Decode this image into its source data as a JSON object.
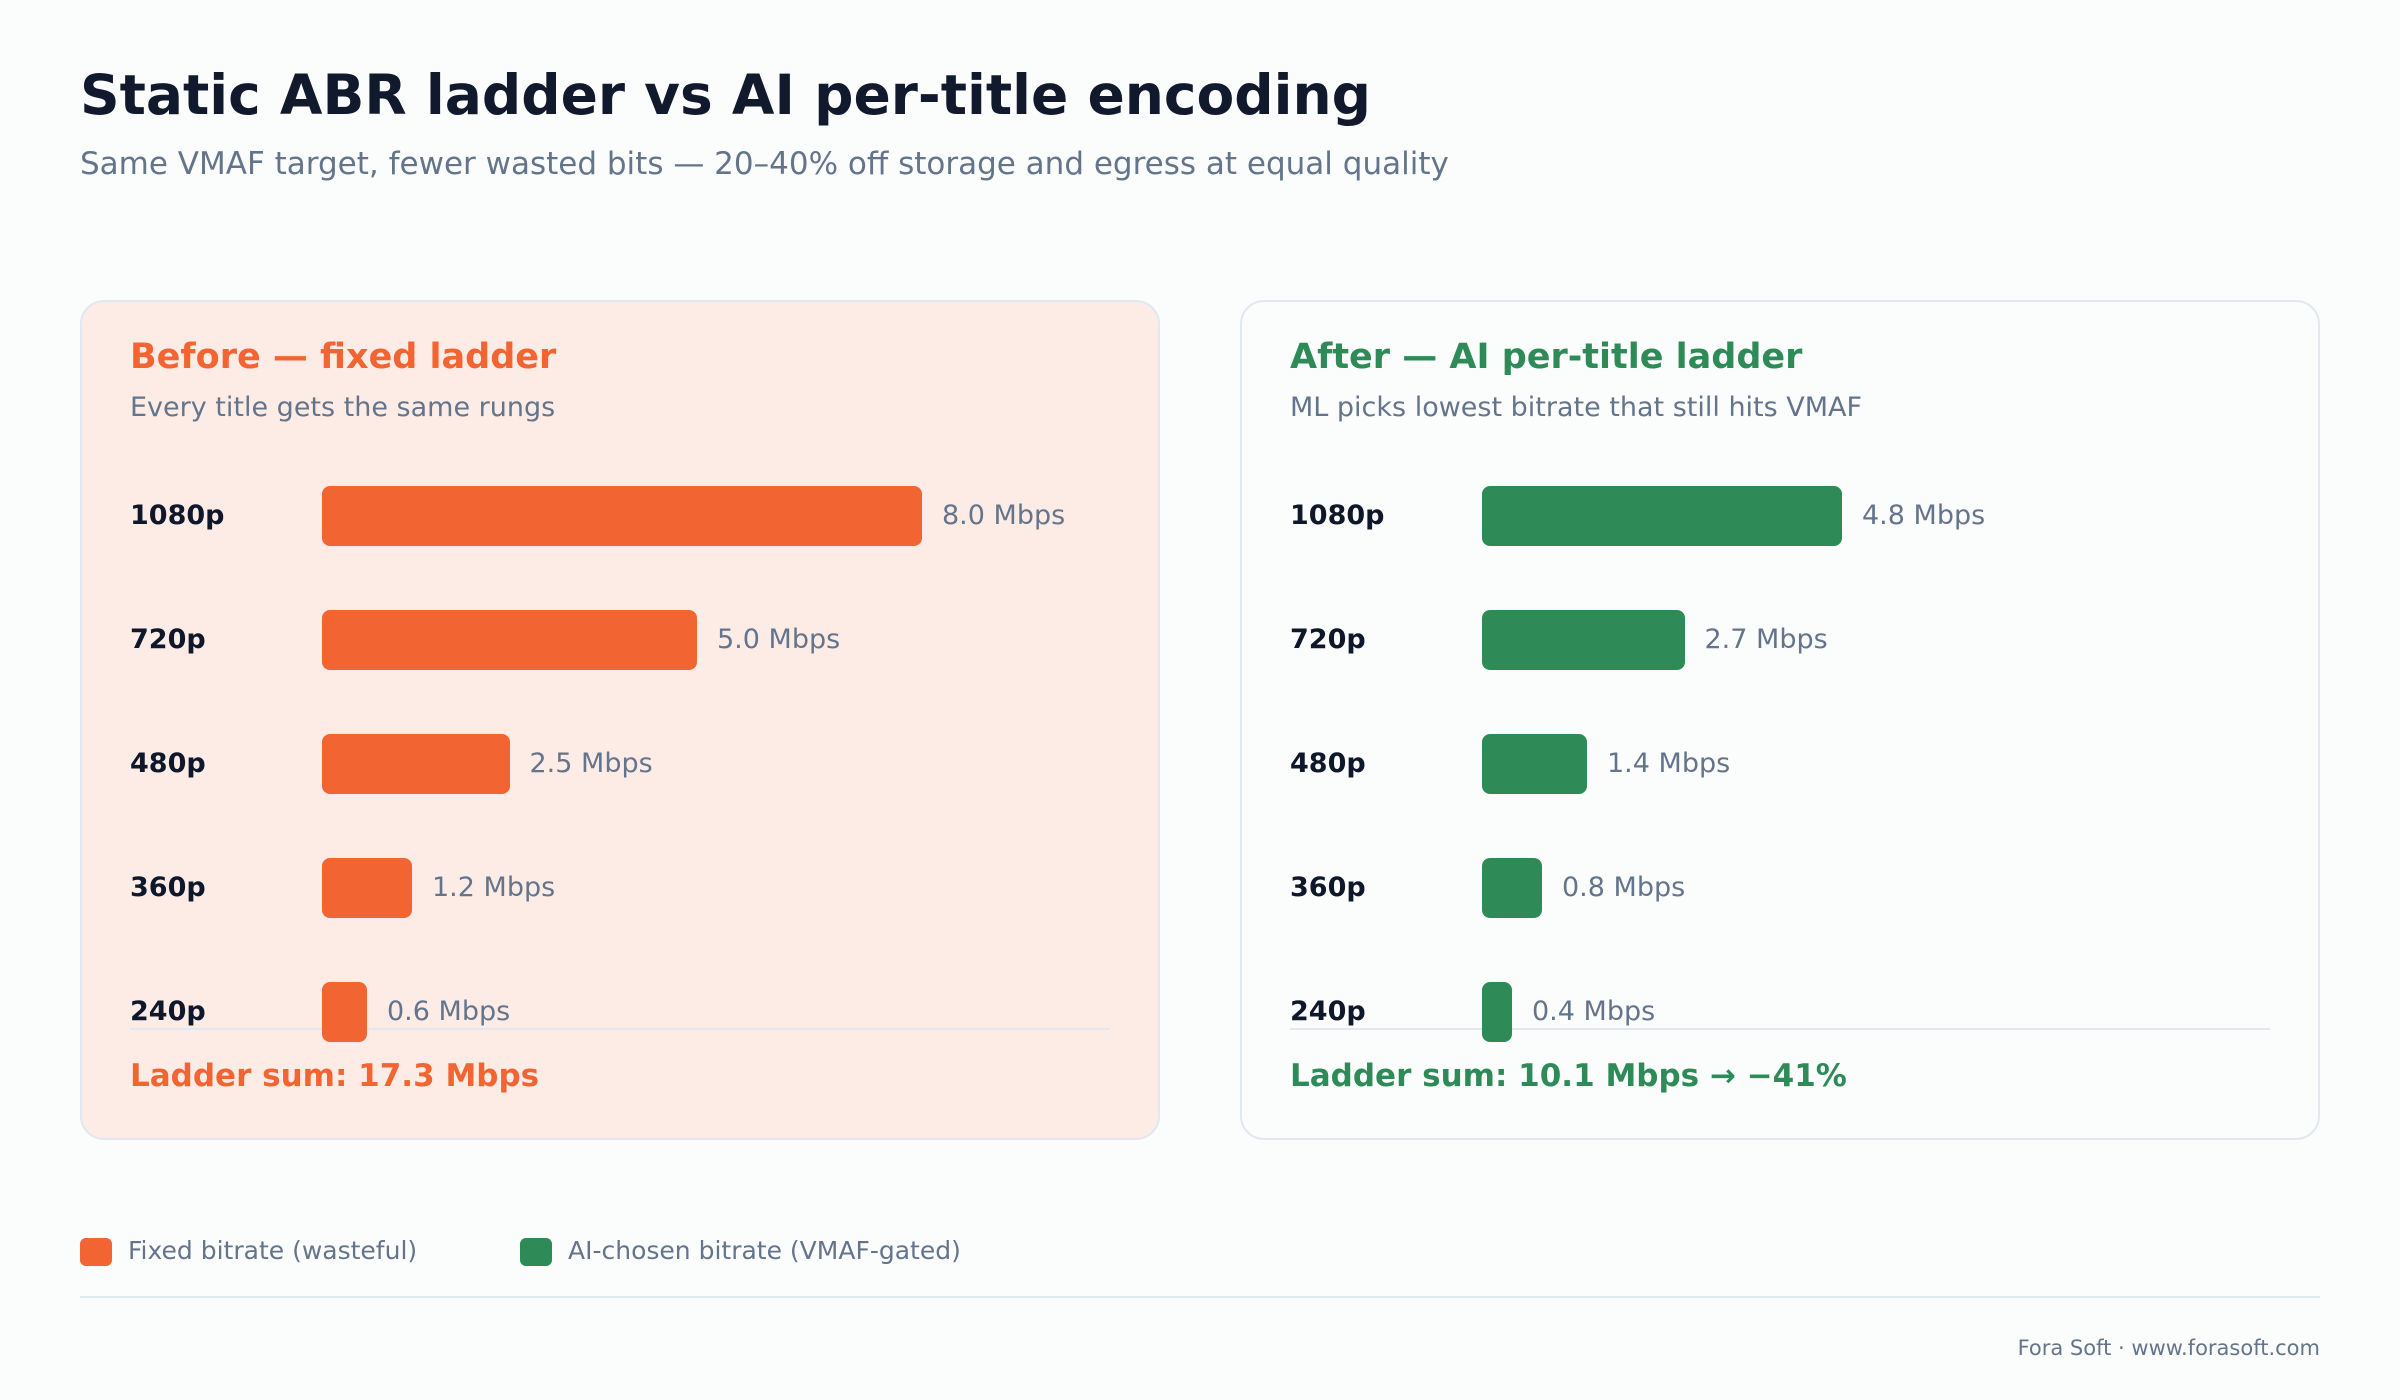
{
  "title": "Static ABR ladder vs AI per-title encoding",
  "subtitle": "Same VMAF target, fewer wasted bits — 20–40% off storage and egress at equal quality",
  "colors": {
    "fixed": "#f26532",
    "ai": "#2e8b57",
    "fixed_panel_bg": "#fdece6",
    "ai_panel_bg": "#fbfdfd",
    "muted_text": "#64748b"
  },
  "panels": [
    {
      "title": "Before — fixed ladder",
      "subtitle": "Every title gets the same rungs",
      "sum": "Ladder sum: 17.3 Mbps",
      "rungs": [
        {
          "label": "1080p",
          "value_label": "8.0 Mbps"
        },
        {
          "label": "720p",
          "value_label": "5.0 Mbps"
        },
        {
          "label": "480p",
          "value_label": "2.5 Mbps"
        },
        {
          "label": "360p",
          "value_label": "1.2 Mbps"
        },
        {
          "label": "240p",
          "value_label": "0.6 Mbps"
        }
      ]
    },
    {
      "title": "After — AI per-title ladder",
      "subtitle": "ML picks lowest bitrate that still hits VMAF",
      "sum": "Ladder sum: 10.1 Mbps → −41%",
      "rungs": [
        {
          "label": "1080p",
          "value_label": "4.8 Mbps"
        },
        {
          "label": "720p",
          "value_label": "2.7 Mbps"
        },
        {
          "label": "480p",
          "value_label": "1.4 Mbps"
        },
        {
          "label": "360p",
          "value_label": "0.8 Mbps"
        },
        {
          "label": "240p",
          "value_label": "0.4 Mbps"
        }
      ]
    }
  ],
  "chart_data": [
    {
      "type": "bar",
      "orientation": "horizontal",
      "title": "Before — fixed ladder",
      "subtitle": "Every title gets the same rungs",
      "categories": [
        "1080p",
        "720p",
        "480p",
        "360p",
        "240p"
      ],
      "values": [
        8.0,
        5.0,
        2.5,
        1.2,
        0.6
      ],
      "unit": "Mbps",
      "xlim": [
        0,
        8.0
      ],
      "grid": false
    },
    {
      "type": "bar",
      "orientation": "horizontal",
      "title": "After — AI per-title ladder",
      "subtitle": "ML picks lowest bitrate that still hits VMAF",
      "categories": [
        "1080p",
        "720p",
        "480p",
        "360p",
        "240p"
      ],
      "values": [
        4.8,
        2.7,
        1.4,
        0.8,
        0.4
      ],
      "unit": "Mbps",
      "xlim": [
        0,
        8.0
      ],
      "grid": false
    }
  ],
  "legend": {
    "items": [
      {
        "label": "Fixed bitrate (wasteful)",
        "color": "#f26532"
      },
      {
        "label": "AI-chosen bitrate (VMAF-gated)",
        "color": "#2e8b57"
      }
    ],
    "placement": "bottom-left"
  },
  "footer": {
    "credit": "Fora Soft · www.forasoft.com"
  }
}
